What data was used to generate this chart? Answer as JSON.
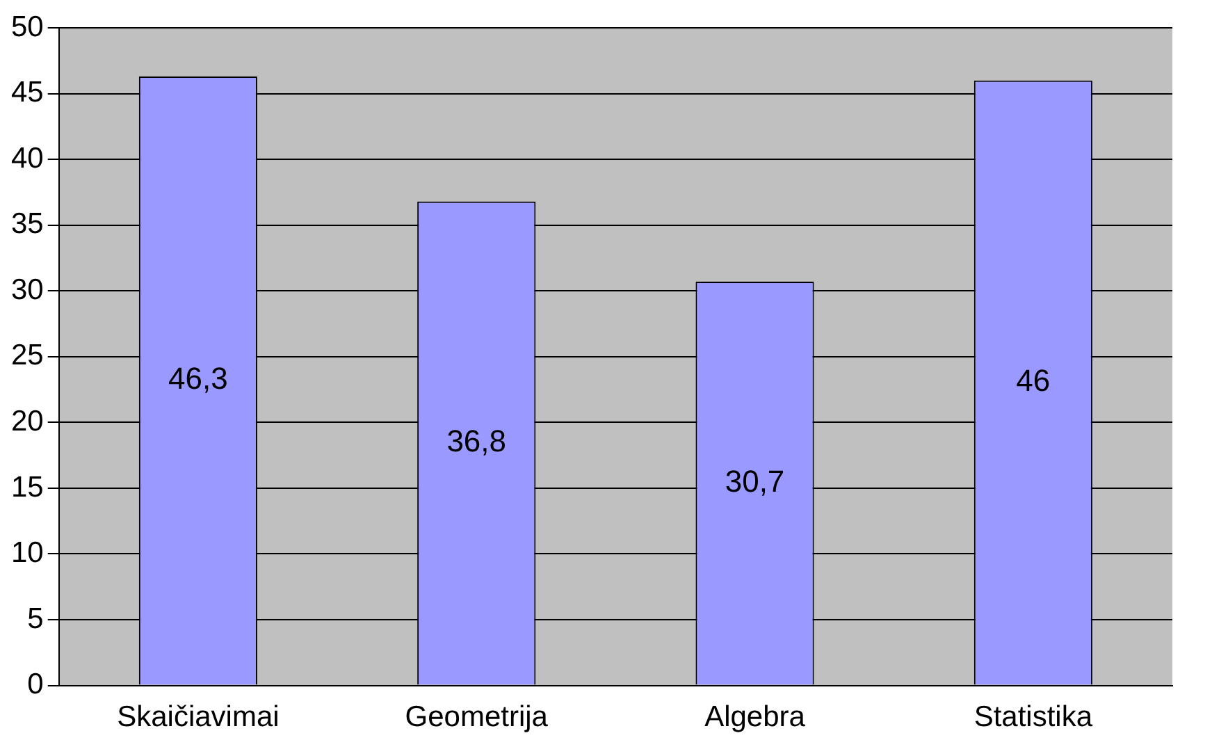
{
  "chart_data": {
    "type": "bar",
    "categories": [
      "Skaičiavimai",
      "Geometrija",
      "Algebra",
      "Statistika"
    ],
    "values": [
      46.3,
      36.8,
      30.7,
      46
    ],
    "value_labels": [
      "46,3",
      "36,8",
      "30,7",
      "46"
    ],
    "color": "#9999ff",
    "ylim": [
      0,
      50
    ],
    "yticks": [
      0,
      5,
      10,
      15,
      20,
      25,
      30,
      35,
      40,
      45,
      50
    ],
    "grid": "y"
  }
}
